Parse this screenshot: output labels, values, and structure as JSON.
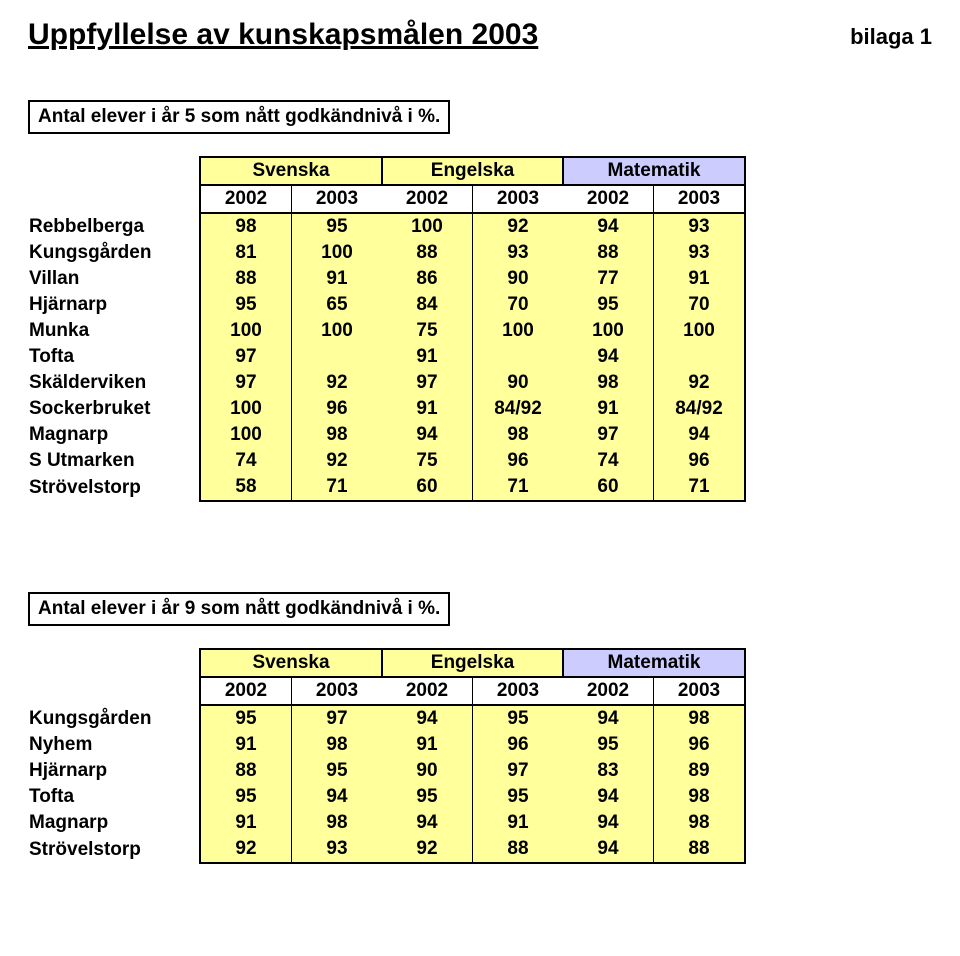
{
  "title": "Uppfyllelse av kunskapsmålen 2003",
  "appendix": "bilaga 1",
  "colors": {
    "subject_fills": [
      "#ffff9c",
      "#ffff9c",
      "#ccccff"
    ],
    "data_fill": "#ffff9c",
    "text": "#000000",
    "border": "#000000",
    "background": "#ffffff"
  },
  "typography": {
    "title_fontsize": 30,
    "appendix_fontsize": 22,
    "label_fontsize": 19,
    "body_fontsize": 19,
    "font_family": "Arial"
  },
  "subjects": [
    "Svenska",
    "Engelska",
    "Matematik"
  ],
  "years": [
    "2002",
    "2003",
    "2002",
    "2003",
    "2002",
    "2003"
  ],
  "table1": {
    "caption": "Antal elever i år 5 som nått godkändnivå i %.",
    "rows": [
      {
        "label": "Rebbelberga",
        "v": [
          "98",
          "95",
          "100",
          "92",
          "94",
          "93"
        ]
      },
      {
        "label": "Kungsgården",
        "v": [
          "81",
          "100",
          "88",
          "93",
          "88",
          "93"
        ]
      },
      {
        "label": "Villan",
        "v": [
          "88",
          "91",
          "86",
          "90",
          "77",
          "91"
        ]
      },
      {
        "label": "Hjärnarp",
        "v": [
          "95",
          "65",
          "84",
          "70",
          "95",
          "70"
        ]
      },
      {
        "label": "Munka",
        "v": [
          "100",
          "100",
          "75",
          "100",
          "100",
          "100"
        ]
      },
      {
        "label": "Tofta",
        "v": [
          "97",
          "",
          "91",
          "",
          "94",
          ""
        ]
      },
      {
        "label": "Skälderviken",
        "v": [
          "97",
          "92",
          "97",
          "90",
          "98",
          "92"
        ]
      },
      {
        "label": "Sockerbruket",
        "v": [
          "100",
          "96",
          "91",
          "84/92",
          "91",
          "84/92"
        ]
      },
      {
        "label": "Magnarp",
        "v": [
          "100",
          "98",
          "94",
          "98",
          "97",
          "94"
        ]
      },
      {
        "label": "S Utmarken",
        "v": [
          "74",
          "92",
          "75",
          "96",
          "74",
          "96"
        ]
      },
      {
        "label": "Strövelstorp",
        "v": [
          "58",
          "71",
          "60",
          "71",
          "60",
          "71"
        ]
      }
    ]
  },
  "table2": {
    "caption": "Antal elever i år 9 som nått godkändnivå i %.",
    "rows": [
      {
        "label": "Kungsgården",
        "v": [
          "95",
          "97",
          "94",
          "95",
          "94",
          "98"
        ]
      },
      {
        "label": "Nyhem",
        "v": [
          "91",
          "98",
          "91",
          "96",
          "95",
          "96"
        ]
      },
      {
        "label": "Hjärnarp",
        "v": [
          "88",
          "95",
          "90",
          "97",
          "83",
          "89"
        ]
      },
      {
        "label": "Tofta",
        "v": [
          "95",
          "94",
          "95",
          "95",
          "94",
          "98"
        ]
      },
      {
        "label": "Magnarp",
        "v": [
          "91",
          "98",
          "94",
          "91",
          "94",
          "98"
        ]
      },
      {
        "label": "Strövelstorp",
        "v": [
          "92",
          "93",
          "92",
          "88",
          "94",
          "88"
        ]
      }
    ]
  }
}
